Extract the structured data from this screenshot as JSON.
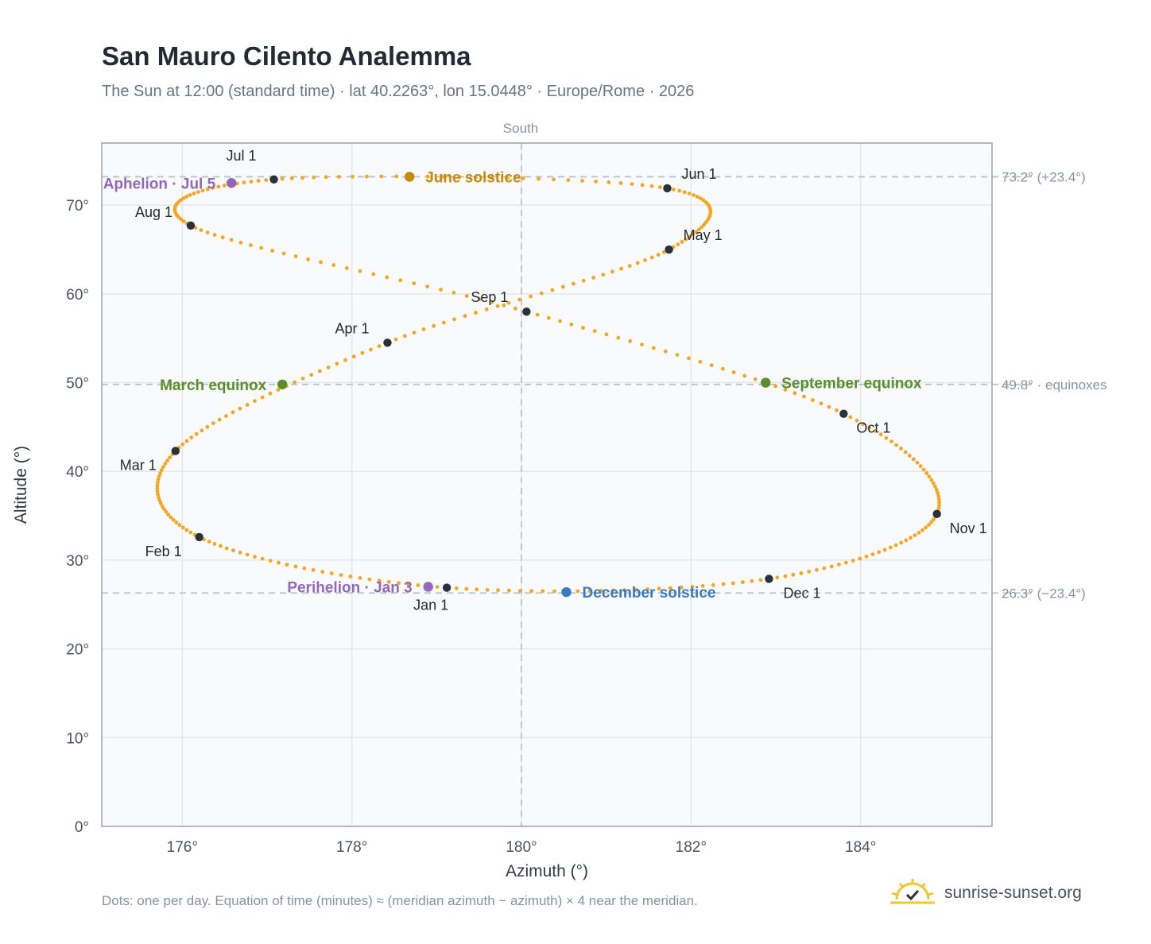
{
  "title": "San Mauro Cilento Analemma",
  "subtitle": "The Sun at 12:00 (standard time) · lat 40.2263°, lon 15.0448° · Europe/Rome · 2026",
  "footnote": "Dots: one per day. Equation of time (minutes) ≈ (meridian azimuth − azimuth) × 4 near the meridian.",
  "brand": {
    "text": "sunrise-sunset.org",
    "icon": "sun-logo-icon"
  },
  "colors": {
    "path": "#f5a623",
    "month_marker": "#2b3139",
    "june_solstice": "#c98a0b",
    "equinox": "#5a8f2c",
    "december_solstice": "#3a7abf",
    "aphelion_perihelion": "#9467bd",
    "grid": "#e3e7ec",
    "plot_bg": "#f8fafc",
    "frame": "#9aa3ae",
    "reference_line": "#b9c3cd"
  },
  "chart_data": {
    "type": "scatter",
    "xlabel": "Azimuth (°)",
    "ylabel": "Altitude (°)",
    "xlim": [
      175.05,
      185.55
    ],
    "ylim": [
      0,
      77
    ],
    "xticks": [
      {
        "value": 176,
        "label": "176°"
      },
      {
        "value": 178,
        "label": "178°"
      },
      {
        "value": 180,
        "label": "180°"
      },
      {
        "value": 182,
        "label": "182°"
      },
      {
        "value": 184,
        "label": "184°"
      }
    ],
    "yticks": [
      {
        "value": 0,
        "label": "0°"
      },
      {
        "value": 10,
        "label": "10°"
      },
      {
        "value": 20,
        "label": "20°"
      },
      {
        "value": 30,
        "label": "30°"
      },
      {
        "value": 40,
        "label": "40°"
      },
      {
        "value": 50,
        "label": "50°"
      },
      {
        "value": 60,
        "label": "60°"
      },
      {
        "value": 70,
        "label": "70°"
      }
    ],
    "grid": true,
    "meridian": {
      "azimuth": 180,
      "label": "South"
    },
    "reference_lines": [
      {
        "altitude": 73.2,
        "label": "73.2° (+23.4°)"
      },
      {
        "altitude": 49.8,
        "label": "49.8° · equinoxes"
      },
      {
        "altitude": 26.3,
        "label": "26.3° (−23.4°)"
      }
    ],
    "series": [
      {
        "kind": "daily_path",
        "points": [
          [
            179.12,
            26.9
          ],
          [
            176.2,
            32.6
          ],
          [
            175.92,
            42.3
          ],
          [
            178.42,
            54.5
          ],
          [
            181.74,
            65.0
          ],
          [
            181.72,
            71.9
          ],
          [
            177.08,
            72.9
          ],
          [
            176.1,
            67.7
          ],
          [
            180.06,
            58.0
          ],
          [
            183.8,
            46.5
          ],
          [
            184.9,
            35.2
          ],
          [
            182.92,
            27.9
          ],
          [
            179.12,
            26.9
          ]
        ]
      }
    ],
    "month_markers": [
      {
        "label": "Jan 1",
        "x": 179.12,
        "y": 26.9
      },
      {
        "label": "Feb 1",
        "x": 176.2,
        "y": 32.6
      },
      {
        "label": "Mar 1",
        "x": 175.92,
        "y": 42.3
      },
      {
        "label": "Apr 1",
        "x": 178.42,
        "y": 54.5
      },
      {
        "label": "May 1",
        "x": 181.74,
        "y": 65.0
      },
      {
        "label": "Jun 1",
        "x": 181.72,
        "y": 71.9
      },
      {
        "label": "Jul 1",
        "x": 177.08,
        "y": 72.9
      },
      {
        "label": "Aug 1",
        "x": 176.1,
        "y": 67.7
      },
      {
        "label": "Sep 1",
        "x": 180.06,
        "y": 58.0
      },
      {
        "label": "Oct 1",
        "x": 183.8,
        "y": 46.5
      },
      {
        "label": "Nov 1",
        "x": 184.9,
        "y": 35.2
      },
      {
        "label": "Dec 1",
        "x": 182.92,
        "y": 27.9
      }
    ],
    "events": [
      {
        "label": "June solstice",
        "x": 178.68,
        "y": 73.2,
        "color": "#c98a0b"
      },
      {
        "label": "March equinox",
        "x": 177.18,
        "y": 49.8,
        "color": "#5a8f2c"
      },
      {
        "label": "September equinox",
        "x": 182.88,
        "y": 50.0,
        "color": "#5a8f2c"
      },
      {
        "label": "December solstice",
        "x": 180.53,
        "y": 26.4,
        "color": "#3a7abf"
      },
      {
        "label": "Aphelion · Jul 5",
        "x": 176.58,
        "y": 72.5,
        "color": "#9467bd"
      },
      {
        "label": "Perihelion · Jan 3",
        "x": 178.9,
        "y": 27.0,
        "color": "#9467bd"
      }
    ]
  }
}
